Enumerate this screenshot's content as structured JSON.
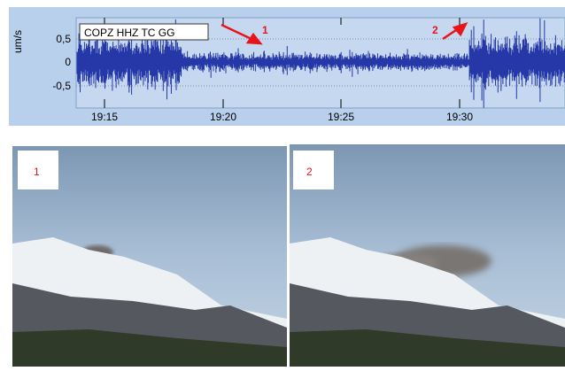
{
  "seismogram": {
    "station": "COPZ HHZ TC GG",
    "y_label": "um/s",
    "y_ticks": [
      "0,5",
      "0",
      "-0,5"
    ],
    "x_ticks": [
      "19:15",
      "19:20",
      "19:25",
      "19:30"
    ],
    "annotations": [
      "1",
      "2"
    ]
  },
  "photos": [
    {
      "label": "1"
    },
    {
      "label": "2"
    }
  ]
}
